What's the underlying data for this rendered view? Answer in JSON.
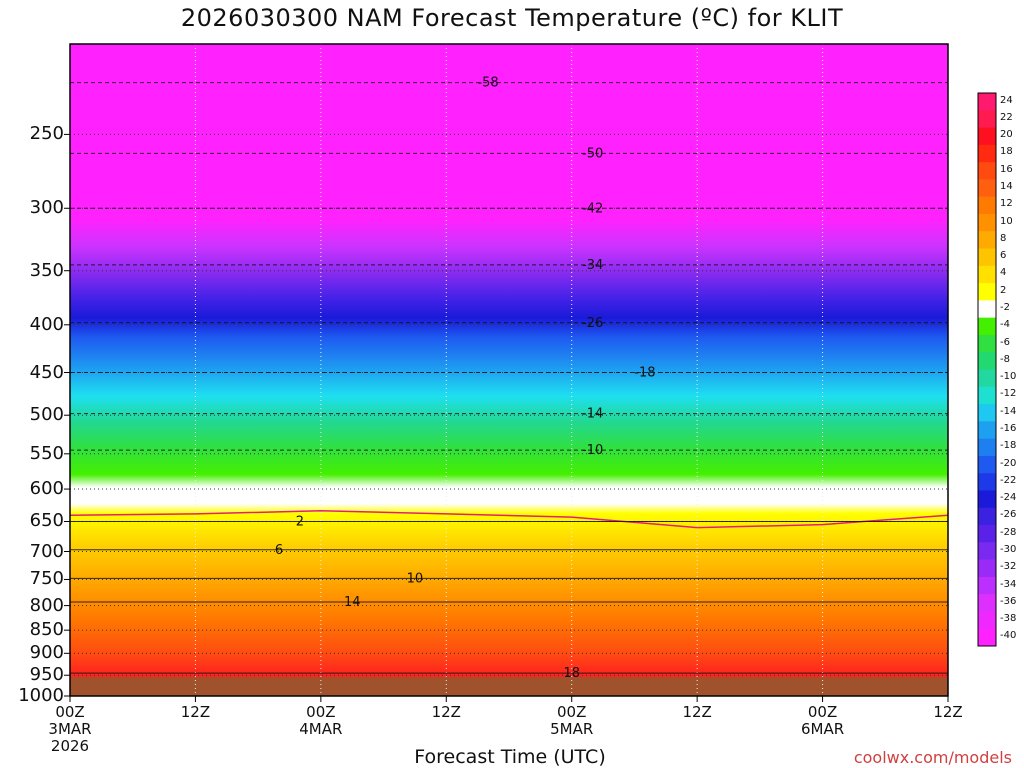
{
  "chart_data": {
    "type": "heatmap",
    "title": "2026030300 NAM Forecast Temperature (ºC) for KLIT",
    "xlabel": "Forecast Time (UTC)",
    "ylabel": "",
    "y_scale": "log",
    "y_inverted": true,
    "ylim": [
      1000,
      200
    ],
    "xlim_hours": [
      0,
      84
    ],
    "y_ticks": [
      "250",
      "300",
      "350",
      "400",
      "450",
      "500",
      "550",
      "600",
      "650",
      "700",
      "750",
      "800",
      "850",
      "900",
      "950",
      "1000"
    ],
    "x_ticks": [
      {
        "hour": 0,
        "lines": [
          "00Z",
          "3MAR",
          "2026"
        ]
      },
      {
        "hour": 12,
        "lines": [
          "12Z"
        ]
      },
      {
        "hour": 24,
        "lines": [
          "00Z",
          "4MAR"
        ]
      },
      {
        "hour": 36,
        "lines": [
          "12Z"
        ]
      },
      {
        "hour": 48,
        "lines": [
          "00Z",
          "5MAR"
        ]
      },
      {
        "hour": 60,
        "lines": [
          "12Z"
        ]
      },
      {
        "hour": 72,
        "lines": [
          "00Z",
          "6MAR"
        ]
      },
      {
        "hour": 84,
        "lines": [
          "12Z"
        ]
      }
    ],
    "grid": true,
    "colorbar_labels": [
      "24",
      "22",
      "20",
      "18",
      "16",
      "14",
      "12",
      "10",
      "8",
      "6",
      "4",
      "2",
      "-2",
      "-4",
      "-6",
      "-8",
      "-10",
      "-12",
      "-14",
      "-16",
      "-18",
      "-20",
      "-22",
      "-24",
      "-26",
      "-28",
      "-30",
      "-32",
      "-34",
      "-36",
      "-38",
      "-40"
    ],
    "contour_labels": [
      {
        "hour": 22,
        "p": 650,
        "label": "2"
      },
      {
        "hour": 20,
        "p": 697,
        "label": "6"
      },
      {
        "hour": 33,
        "p": 748,
        "label": "10"
      },
      {
        "hour": 27,
        "p": 793,
        "label": "14"
      },
      {
        "hour": 48,
        "p": 945,
        "label": "18"
      },
      {
        "hour": 50,
        "p": 545,
        "label": "-10"
      },
      {
        "hour": 50,
        "p": 498,
        "label": "-14"
      },
      {
        "hour": 55,
        "p": 450,
        "label": "-18"
      },
      {
        "hour": 50,
        "p": 398,
        "label": "-26"
      },
      {
        "hour": 50,
        "p": 345,
        "label": "-34"
      },
      {
        "hour": 50,
        "p": 300,
        "label": "-42"
      },
      {
        "hour": 50,
        "p": 262,
        "label": "-50"
      },
      {
        "hour": 40,
        "p": 220,
        "label": "-58"
      }
    ],
    "freezing_level": [
      {
        "hour": 0,
        "p": 640
      },
      {
        "hour": 12,
        "p": 638
      },
      {
        "hour": 24,
        "p": 633
      },
      {
        "hour": 36,
        "p": 638
      },
      {
        "hour": 48,
        "p": 643
      },
      {
        "hour": 60,
        "p": 660
      },
      {
        "hour": 72,
        "p": 655
      },
      {
        "hour": 84,
        "p": 640
      }
    ]
  },
  "credit": "coolwx.com/models"
}
